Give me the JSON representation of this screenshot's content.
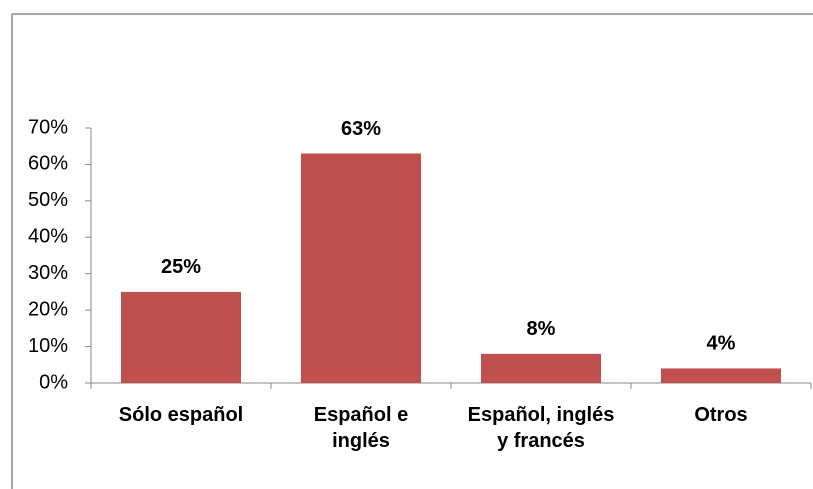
{
  "chart_data": {
    "type": "bar",
    "categories": [
      "Sólo español",
      "Español e inglés",
      "Español, inglés y francés",
      "Otros"
    ],
    "values": [
      25,
      63,
      8,
      4
    ],
    "value_labels": [
      "25%",
      "63%",
      "8%",
      "4%"
    ],
    "color": "#c0504d",
    "ylim": [
      0,
      70
    ],
    "yticks": [
      {
        "value": 0,
        "label": "0%"
      },
      {
        "value": 10,
        "label": "10%"
      },
      {
        "value": 20,
        "label": "20%"
      },
      {
        "value": 30,
        "label": "30%"
      },
      {
        "value": 40,
        "label": "40%"
      },
      {
        "value": 50,
        "label": "50%"
      },
      {
        "value": 60,
        "label": "60%"
      },
      {
        "value": 70,
        "label": "70%"
      }
    ],
    "grid": false
  }
}
